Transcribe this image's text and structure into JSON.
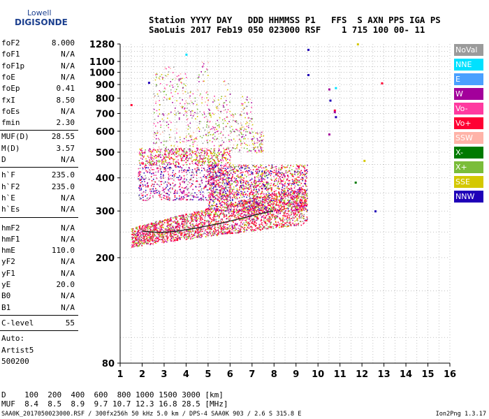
{
  "branding": {
    "line1": "Lowell",
    "line2": "DIGISONDE"
  },
  "header": {
    "labels": "Station YYYY DAY   DDD HHMMSS P1   FFS  S AXN PPS IGA PS",
    "values": "SaoLuis 2017 Feb19 050 023000 RSF    1 715 100 00- 11"
  },
  "parameters": {
    "group1": [
      {
        "k": "foF2",
        "v": "8.000"
      },
      {
        "k": "foF1",
        "v": "N/A"
      },
      {
        "k": "foF1p",
        "v": "N/A"
      },
      {
        "k": "foE",
        "v": "N/A"
      },
      {
        "k": "foEp",
        "v": "0.41"
      },
      {
        "k": "fxI",
        "v": "8.50"
      },
      {
        "k": "foEs",
        "v": "N/A"
      },
      {
        "k": "fmin",
        "v": "2.30"
      }
    ],
    "group2": [
      {
        "k": "MUF(D)",
        "v": "28.55"
      },
      {
        "k": "M(D)",
        "v": "3.57"
      },
      {
        "k": "D",
        "v": "N/A"
      }
    ],
    "group3": [
      {
        "k": "h`F",
        "v": "235.0"
      },
      {
        "k": "h`F2",
        "v": "235.0"
      },
      {
        "k": "h`E",
        "v": "N/A"
      },
      {
        "k": "h`Es",
        "v": "N/A"
      }
    ],
    "group4": [
      {
        "k": "hmF2",
        "v": "N/A"
      },
      {
        "k": "hmF1",
        "v": "N/A"
      },
      {
        "k": "hmE",
        "v": "110.0"
      },
      {
        "k": "yF2",
        "v": "N/A"
      },
      {
        "k": "yF1",
        "v": "N/A"
      },
      {
        "k": "yE",
        "v": "20.0"
      },
      {
        "k": "B0",
        "v": "N/A"
      },
      {
        "k": "B1",
        "v": "N/A"
      }
    ],
    "clevel": {
      "k": "C-level",
      "v": "55"
    },
    "auto": [
      "Auto:",
      "Artist5",
      "500200"
    ]
  },
  "footer": {
    "d_row": "D    100  200  400  600  800 1000 1500 3000 [km]",
    "muf_row": "MUF  8.4  8.5  8.9  9.7 10.7 12.3 16.8 28.5 [MHz]",
    "file_line": "SAA0K_2017050023000.RSF / 300fx256h 50 kHz 5.0 km / DPS-4 SAA0K 903 / 2.6 S 315.8 E",
    "version": "Ion2Png 1.3.17"
  },
  "legend": [
    {
      "label": "NoVal",
      "color": "#9b9b9b"
    },
    {
      "label": "NNE",
      "color": "#00e1ff"
    },
    {
      "label": "E",
      "color": "#4aa0ff"
    },
    {
      "label": "W",
      "color": "#a3009b"
    },
    {
      "label": "Vo-",
      "color": "#ff3aa0"
    },
    {
      "label": "Vo+",
      "color": "#ff0033"
    },
    {
      "label": "SSW",
      "color": "#ffb3a8"
    },
    {
      "label": "X-",
      "color": "#007a00"
    },
    {
      "label": "X+",
      "color": "#7bbd3a"
    },
    {
      "label": "SSE",
      "color": "#d4c800"
    },
    {
      "label": "NNW",
      "color": "#1f00b8"
    }
  ],
  "chart_data": {
    "type": "scatter",
    "x_ticks": [
      "1",
      "2",
      "3",
      "4",
      "5",
      "6",
      "7",
      "8",
      "9",
      "10",
      "11",
      "12",
      "13",
      "14",
      "15",
      "16"
    ],
    "y_ticks": [
      "80",
      "200",
      "300",
      "400",
      "500",
      "600",
      "700",
      "800",
      "900",
      "1000",
      "1100",
      "1280"
    ],
    "xlim": [
      1,
      16
    ],
    "ylim": [
      80,
      1280
    ],
    "y_scale": "log",
    "grid": true,
    "legend_position": "right",
    "trace": [
      [
        2.0,
        252
      ],
      [
        2.4,
        250
      ],
      [
        2.8,
        249
      ],
      [
        3.2,
        250
      ],
      [
        3.6,
        252
      ],
      [
        4.0,
        255
      ],
      [
        4.4,
        258
      ],
      [
        4.8,
        262
      ],
      [
        5.2,
        266
      ],
      [
        5.6,
        270
      ],
      [
        6.0,
        275
      ],
      [
        6.4,
        280
      ],
      [
        6.8,
        285
      ],
      [
        7.2,
        291
      ],
      [
        7.6,
        296
      ],
      [
        7.95,
        300
      ]
    ],
    "isolated_points": [
      {
        "x": 9.55,
        "y": 1220,
        "c": "NNW"
      },
      {
        "x": 9.55,
        "y": 980,
        "c": "NNW"
      },
      {
        "x": 10.5,
        "y": 865,
        "c": "W"
      },
      {
        "x": 10.8,
        "y": 875,
        "c": "NNE"
      },
      {
        "x": 10.55,
        "y": 785,
        "c": "NNW"
      },
      {
        "x": 10.75,
        "y": 720,
        "c": "Vo+"
      },
      {
        "x": 10.75,
        "y": 710,
        "c": "W"
      },
      {
        "x": 10.8,
        "y": 680,
        "c": "NNW"
      },
      {
        "x": 10.5,
        "y": 585,
        "c": "W"
      },
      {
        "x": 12.9,
        "y": 912,
        "c": "Vo+"
      },
      {
        "x": 12.1,
        "y": 465,
        "c": "SSE"
      },
      {
        "x": 11.7,
        "y": 385,
        "c": "X-"
      },
      {
        "x": 12.6,
        "y": 300,
        "c": "NNW"
      },
      {
        "x": 2.3,
        "y": 916,
        "c": "NNW"
      },
      {
        "x": 4.0,
        "y": 1170,
        "c": "NNE"
      },
      {
        "x": 1.5,
        "y": 755,
        "c": "Vo+"
      },
      {
        "x": 11.8,
        "y": 1280,
        "c": "SSE"
      }
    ],
    "scatter_clouds": [
      {
        "band": "base-trace",
        "x": [
          1.5,
          9.5
        ],
        "y": [
          220,
          330
        ],
        "colors": [
          "Vo+",
          "Vo+",
          "Vo+",
          "Vo-",
          "X+",
          "SSE",
          "NoVal",
          "W"
        ]
      },
      {
        "band": "spread-F",
        "x": [
          5.0,
          9.5
        ],
        "y": [
          300,
          450
        ],
        "colors": [
          "Vo+",
          "Vo+",
          "Vo-",
          "X+",
          "SSE",
          "W",
          "NNW"
        ]
      },
      {
        "band": "lower-echo",
        "x": [
          1.8,
          6.0
        ],
        "y": [
          330,
          450
        ],
        "colors": [
          "NNW",
          "W",
          "Vo+",
          "Vo-",
          "NoVal"
        ]
      },
      {
        "band": "mid-echo",
        "x": [
          1.8,
          6.0
        ],
        "y": [
          450,
          520
        ],
        "colors": [
          "Vo+",
          "Vo-",
          "SSE",
          "W",
          "X+"
        ]
      },
      {
        "band": "columns",
        "x": [
          2.5,
          7.5
        ],
        "y": [
          520,
          1100
        ],
        "colors": [
          "SSE",
          "Vo-",
          "W",
          "NoVal",
          "SSW",
          "X+"
        ]
      }
    ]
  }
}
